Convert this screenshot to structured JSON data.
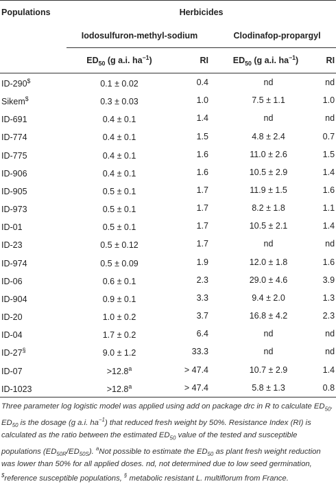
{
  "headers": {
    "populations": "Populations",
    "herbicides": "Herbicides",
    "herbicide_1": "Iodosulfuron-methyl-sodium",
    "herbicide_2": "Clodinafop-propargyl",
    "ed_prefix": "ED",
    "ed_sub": "50",
    "ed_suffix": " (g a.i. ha",
    "ed_sup": "−1",
    "ed_close": ")",
    "ri": "RI"
  },
  "rows": [
    {
      "pop": "ID-290",
      "mark": "$",
      "ed1": "0.1 ± 0.02",
      "sup1": "",
      "ri1": "0.4",
      "ed2": "nd",
      "ri2": "nd"
    },
    {
      "pop": "Sikem",
      "mark": "$",
      "ed1": "0.3 ± 0.03",
      "sup1": "",
      "ri1": "1.0",
      "ed2": "7.5 ± 1.1",
      "ri2": "1.0"
    },
    {
      "pop": "ID-691",
      "mark": "",
      "ed1": "0.4 ± 0.1",
      "sup1": "",
      "ri1": "1.4",
      "ed2": "nd",
      "ri2": "nd"
    },
    {
      "pop": "ID-774",
      "mark": "",
      "ed1": "0.4 ± 0.1",
      "sup1": "",
      "ri1": "1.5",
      "ed2": "4.8 ± 2.4",
      "ri2": "0.7"
    },
    {
      "pop": "ID-775",
      "mark": "",
      "ed1": "0.4 ± 0.1",
      "sup1": "",
      "ri1": "1.6",
      "ed2": "11.0 ± 2.6",
      "ri2": "1.5"
    },
    {
      "pop": "ID-906",
      "mark": "",
      "ed1": "0.4 ± 0.1",
      "sup1": "",
      "ri1": "1.6",
      "ed2": "10.5 ± 2.9",
      "ri2": "1.4"
    },
    {
      "pop": "ID-905",
      "mark": "",
      "ed1": "0.5 ± 0.1",
      "sup1": "",
      "ri1": "1.7",
      "ed2": "11.9 ± 1.5",
      "ri2": "1.6"
    },
    {
      "pop": "ID-973",
      "mark": "",
      "ed1": "0.5 ± 0.1",
      "sup1": "",
      "ri1": "1.7",
      "ed2": "8.2 ± 1.8",
      "ri2": "1.1"
    },
    {
      "pop": "ID-01",
      "mark": "",
      "ed1": "0.5 ± 0.1",
      "sup1": "",
      "ri1": "1.7",
      "ed2": "10.5 ± 2.1",
      "ri2": "1.4"
    },
    {
      "pop": "ID-23",
      "mark": "",
      "ed1": "0.5 ± 0.12",
      "sup1": "",
      "ri1": "1.7",
      "ed2": "nd",
      "ri2": "nd"
    },
    {
      "pop": "ID-974",
      "mark": "",
      "ed1": "0.5 ± 0.09",
      "sup1": "",
      "ri1": "1.9",
      "ed2": "12.0 ± 1.8",
      "ri2": "1.6"
    },
    {
      "pop": "ID-06",
      "mark": "",
      "ed1": "0.6 ± 0.1",
      "sup1": "",
      "ri1": "2.3",
      "ed2": "29.0 ± 4.6",
      "ri2": "3.9"
    },
    {
      "pop": "ID-904",
      "mark": "",
      "ed1": "0.9 ± 0.1",
      "sup1": "",
      "ri1": "3.3",
      "ed2": "9.4 ± 2.0",
      "ri2": "1.3"
    },
    {
      "pop": "ID-20",
      "mark": "",
      "ed1": "1.0 ± 0.2",
      "sup1": "",
      "ri1": "3.7",
      "ed2": "16.8 ± 4.2",
      "ri2": "2.3"
    },
    {
      "pop": "ID-04",
      "mark": "",
      "ed1": "1.7 ± 0.2",
      "sup1": "",
      "ri1": "6.4",
      "ed2": "nd",
      "ri2": "nd"
    },
    {
      "pop": "ID-27",
      "mark": "§",
      "ed1": "9.0 ± 1.2",
      "sup1": "",
      "ri1": "33.3",
      "ed2": "nd",
      "ri2": "nd"
    },
    {
      "pop": "ID-07",
      "mark": "",
      "ed1": ">12.8",
      "sup1": "a",
      "ri1": "> 47.4",
      "ed2": "10.7 ± 2.9",
      "ri2": "1.4"
    },
    {
      "pop": "ID-1023",
      "mark": "",
      "ed1": ">12.8",
      "sup1": "a",
      "ri1": "> 47.4",
      "ed2": "5.8 ± 1.3",
      "ri2": "0.8"
    }
  ],
  "footnote": {
    "p1": "Three parameter log logistic model was applied using add on package drc in R to calculate ED",
    "p1_sub": "50",
    "p2": ". ED",
    "p2_sub": "50",
    "p3": " is the dosage (g a.i. ha",
    "p3_sup": "−1",
    "p4": ") that reduced fresh weight by 50%. Resistance Index (RI) is calculated as the ratio between the estimated ED",
    "p4_sub": "50",
    "p5": " value of the tested and susceptible populations (ED",
    "p5_sub": "50R",
    "p6": "/ED",
    "p6_sub": "50S",
    "p7": "). ",
    "p7_sup": "a",
    "p8": "Not possible to estimate the ED",
    "p8_sub": "50",
    "p9": " as plant fresh weight reduction was lower than 50% for all applied doses. nd, not determined due to low seed germination, ",
    "p9_sup": "$",
    "p10": "reference susceptible populations, ",
    "p10_sup": "§",
    "p11": " metabolic resistant L. multiflorum from France."
  }
}
